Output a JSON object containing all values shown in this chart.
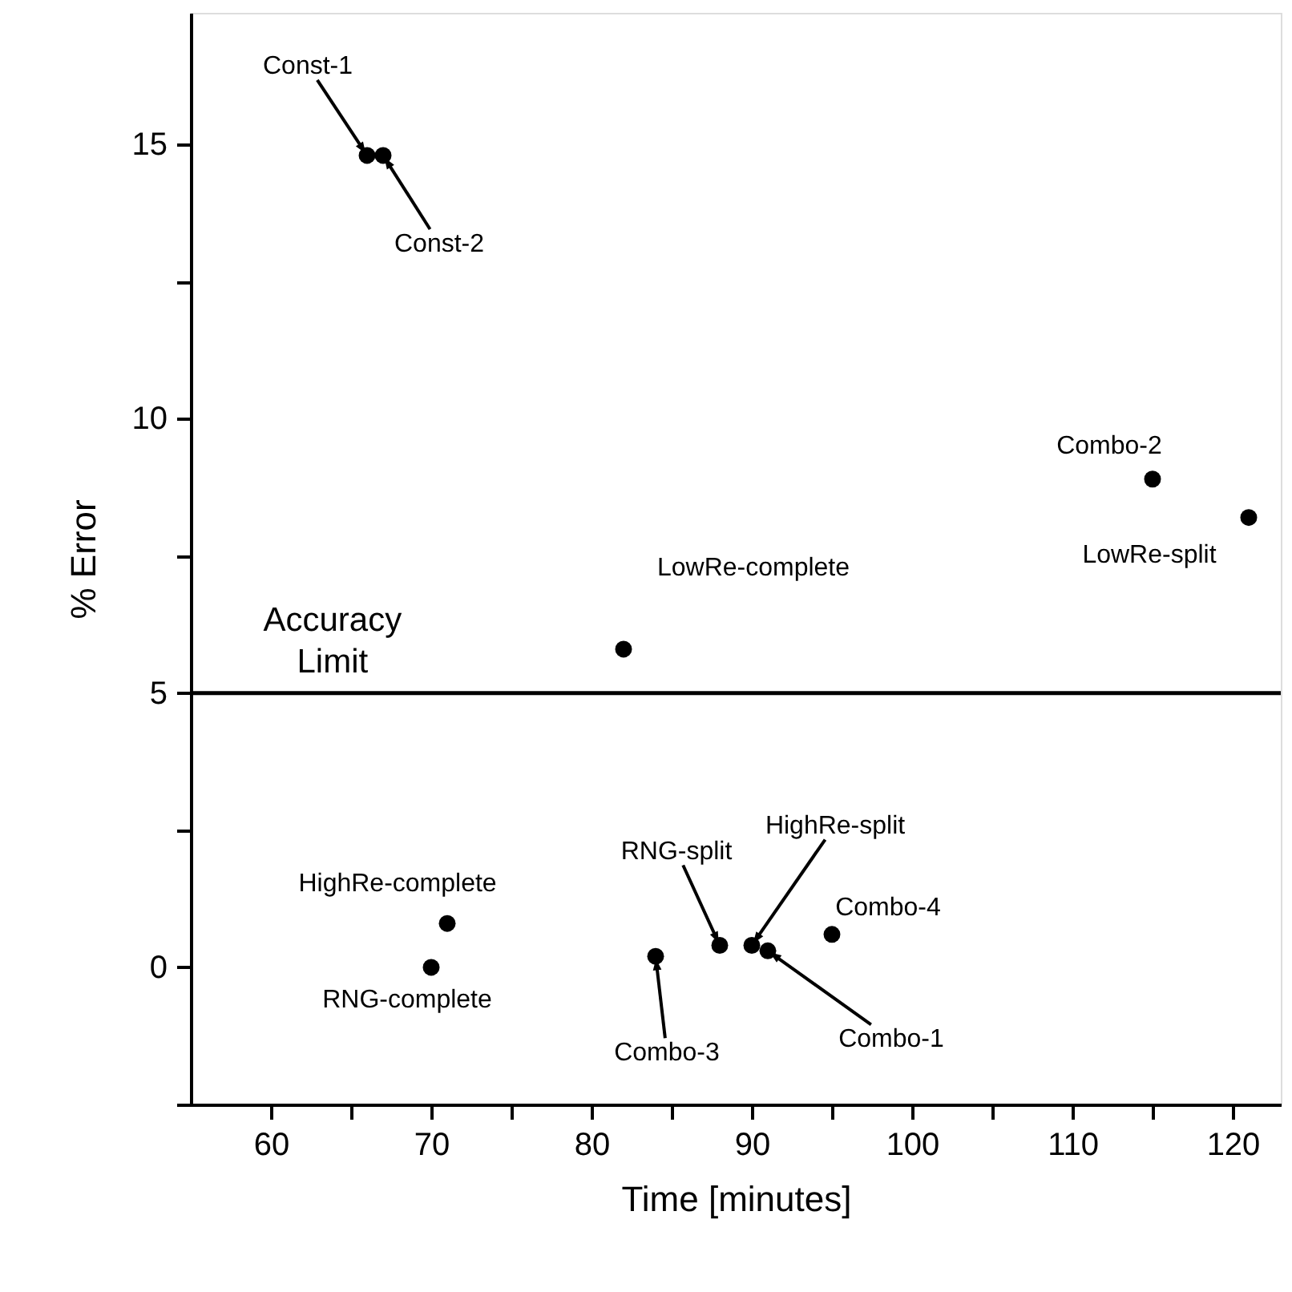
{
  "chart_data": {
    "type": "scatter",
    "xlabel": "Time [minutes]",
    "ylabel": "% Error",
    "x": [
      66,
      67,
      82,
      71,
      70,
      84,
      88,
      90,
      91,
      95,
      115,
      121
    ],
    "series": [
      {
        "color": "#000000",
        "values": [
          14.8,
          14.8,
          5.8,
          0.8,
          0,
          0.2,
          0.4,
          0.4,
          0.3,
          0.6,
          8.9,
          8.2
        ]
      }
    ],
    "marker": "circle",
    "grid": false,
    "xlim": [
      55,
      123
    ],
    "ylim": [
      -2.5,
      17.4
    ],
    "xticks": [
      60,
      {
        "value": 65,
        "label": null
      },
      70,
      {
        "value": 75,
        "label": null
      },
      80,
      {
        "value": 85,
        "label": null
      },
      90,
      {
        "value": 95,
        "label": null
      },
      100,
      {
        "value": 105,
        "label": null
      },
      110,
      {
        "value": 115,
        "label": null
      },
      120
    ],
    "yticks": [
      {
        "value": -2.5,
        "label": null
      },
      0,
      {
        "value": 2.5,
        "label": null
      },
      5,
      {
        "value": 7.5,
        "label": null
      },
      10,
      {
        "value": 12.5,
        "label": null
      },
      15
    ],
    "ref_lines": [
      {
        "axis": "y",
        "value": 5,
        "label": "Accuracy Limit",
        "color": "#000000",
        "line_style": "solid"
      }
    ],
    "annotations": [
      {
        "text": "Const-1",
        "x": 66,
        "y": 14.8
      },
      {
        "text": "Const-2",
        "x": 67,
        "y": 14.8
      },
      {
        "text": "LowRe-complete",
        "x": 82,
        "y": 5.8
      },
      {
        "text": "HighRe-complete",
        "x": 71,
        "y": 0.8
      },
      {
        "text": "RNG-complete",
        "x": 70,
        "y": 0
      },
      {
        "text": "Combo-3",
        "x": 84,
        "y": 0.2
      },
      {
        "text": "RNG-split",
        "x": 88,
        "y": 0.4
      },
      {
        "text": "HighRe-split",
        "x": 90,
        "y": 0.4
      },
      {
        "text": "Combo-1",
        "x": 91,
        "y": 0.3
      },
      {
        "text": "Combo-4",
        "x": 95,
        "y": 0.6
      },
      {
        "text": "Combo-2",
        "x": 115,
        "y": 8.9
      },
      {
        "text": "LowRe-split",
        "x": 121,
        "y": 8.2
      }
    ]
  }
}
